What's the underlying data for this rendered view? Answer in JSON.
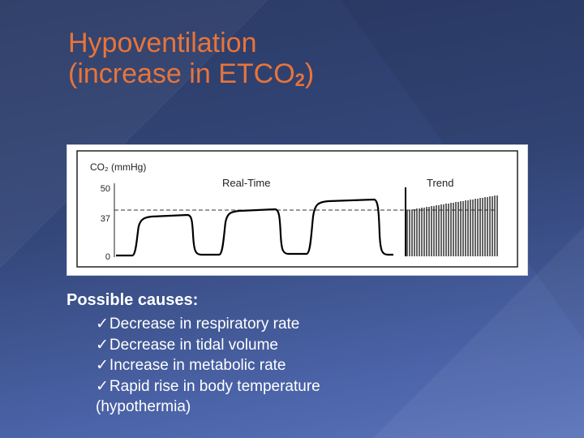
{
  "slide": {
    "title_line1": "Hypoventilation",
    "title_line2_prefix": "(increase in ETCO",
    "title_subscript": "2",
    "title_line2_suffix": ")"
  },
  "figure": {
    "y_axis_label": "CO₂ (mmHg)",
    "label_realtime": "Real-Time",
    "label_trend": "Trend",
    "y_ticks": [
      "50",
      "37",
      "0"
    ],
    "threshold_value": 37
  },
  "causes": {
    "heading": "Possible causes:",
    "check_glyph": "✓",
    "items": [
      "Decrease in respiratory rate",
      "Decrease in tidal volume",
      "Increase in metabolic rate",
      "Rapid rise in body temperature"
    ],
    "continuation": "(hypothermia)"
  },
  "colors": {
    "background": "#34477a",
    "title": "#e8743a",
    "text": "#ffffff"
  }
}
